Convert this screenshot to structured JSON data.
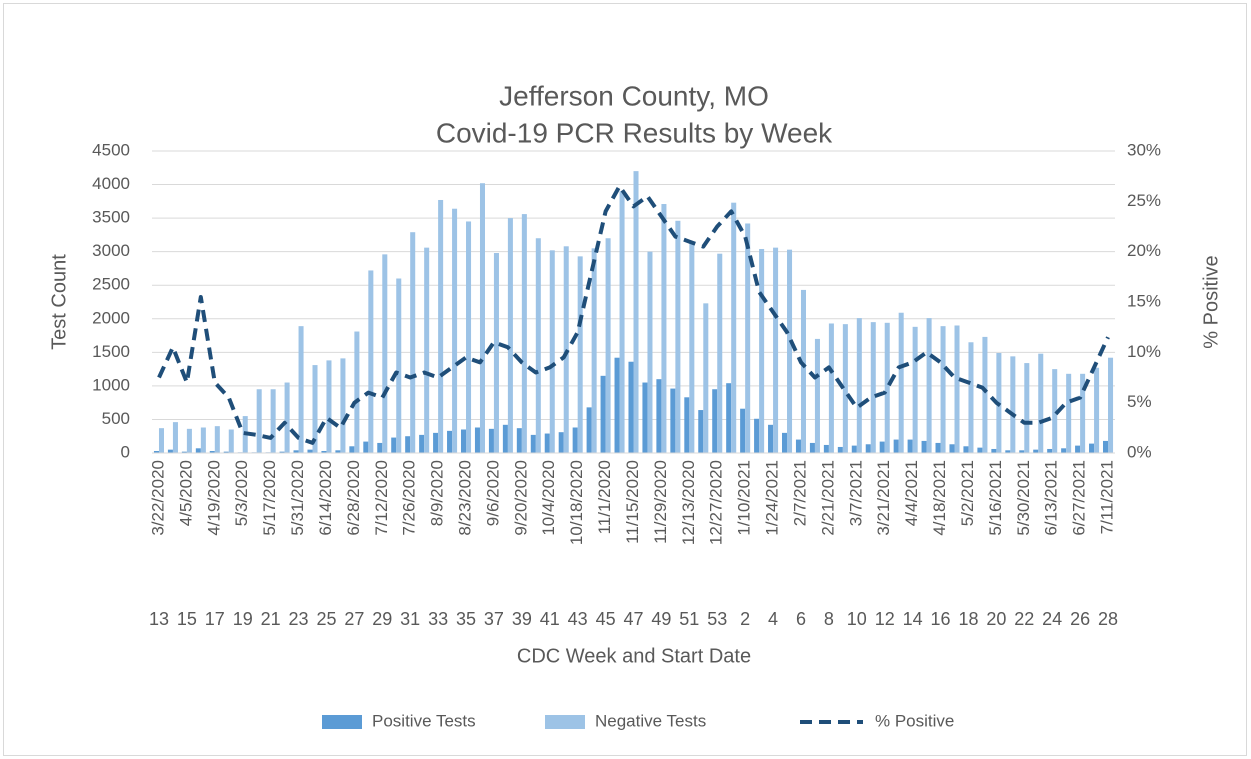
{
  "chart_data": {
    "type": "bar_line",
    "title": "Jefferson County, MO",
    "subtitle": "Covid-19 PCR Results by Week",
    "x_label": "CDC Week and Start Date",
    "y_label": "Test Count",
    "y2_label": "% Positive",
    "categories": [
      "3/22/2020",
      null,
      "4/5/2020",
      null,
      "4/19/2020",
      null,
      "5/3/2020",
      null,
      "5/17/2020",
      null,
      "5/31/2020",
      null,
      "6/14/2020",
      null,
      "6/28/2020",
      null,
      "7/12/2020",
      null,
      "7/26/2020",
      null,
      "8/9/2020",
      null,
      "8/23/2020",
      null,
      "9/6/2020",
      null,
      "9/20/2020",
      null,
      "10/4/2020",
      null,
      "10/18/2020",
      null,
      "11/1/2020",
      null,
      "11/15/2020",
      null,
      "11/29/2020",
      null,
      "12/13/2020",
      null,
      "12/27/2020",
      null,
      "1/10/2021",
      null,
      "1/24/2021",
      null,
      "2/7/2021",
      null,
      "2/21/2021",
      null,
      "3/7/2021",
      null,
      "3/21/2021",
      null,
      "4/4/2021",
      null,
      "4/18/2021",
      null,
      "5/2/2021",
      null,
      "5/16/2021",
      null,
      "5/30/2021",
      null,
      "6/13/2021",
      null,
      "6/27/2021",
      null,
      "7/11/2021"
    ],
    "weeks": [
      13,
      null,
      15,
      null,
      17,
      null,
      19,
      null,
      21,
      null,
      23,
      null,
      25,
      null,
      27,
      null,
      29,
      null,
      31,
      null,
      33,
      null,
      35,
      null,
      37,
      null,
      39,
      null,
      41,
      null,
      43,
      null,
      45,
      null,
      47,
      null,
      49,
      null,
      51,
      null,
      53,
      null,
      2,
      null,
      4,
      null,
      6,
      null,
      8,
      null,
      10,
      null,
      12,
      null,
      14,
      null,
      16,
      null,
      18,
      null,
      20,
      null,
      22,
      null,
      24,
      null,
      26,
      null,
      28
    ],
    "series": [
      {
        "name": "Positive Tests",
        "color": "#5b9bd5",
        "values": [
          30,
          50,
          20,
          70,
          30,
          20,
          10,
          10,
          10,
          20,
          40,
          50,
          30,
          40,
          100,
          170,
          150,
          230,
          250,
          270,
          300,
          330,
          350,
          380,
          360,
          420,
          370,
          270,
          290,
          310,
          380,
          680,
          1150,
          1420,
          1360,
          1050,
          1100,
          960,
          830,
          640,
          950,
          1040,
          660,
          510,
          420,
          300,
          200,
          150,
          120,
          90,
          110,
          130,
          170,
          200,
          200,
          180,
          150,
          130,
          100,
          80,
          60,
          40,
          40,
          50,
          60,
          70,
          110,
          140,
          180
        ]
      },
      {
        "name": "Negative Tests",
        "color": "#9dc3e6",
        "values": [
          370,
          460,
          360,
          380,
          400,
          350,
          550,
          950,
          950,
          1050,
          1890,
          1310,
          1380,
          1410,
          1810,
          2720,
          2960,
          2600,
          3290,
          3060,
          3770,
          3640,
          3450,
          4020,
          2980,
          3500,
          3560,
          3200,
          3020,
          3080,
          2930,
          3050,
          3200,
          3900,
          4200,
          3000,
          3710,
          3460,
          3150,
          2230,
          2970,
          3730,
          3420,
          3040,
          3060,
          3030,
          2430,
          1700,
          1930,
          1920,
          2010,
          1950,
          1940,
          2090,
          1880,
          2010,
          1890,
          1900,
          1650,
          1730,
          1490,
          1440,
          1340,
          1480,
          1250,
          1180,
          1180,
          1270,
          1420
        ]
      },
      {
        "name": "% Positive",
        "color": "#1f4e79",
        "axis": "y2",
        "dashed": true,
        "values": [
          7.5,
          10.5,
          7,
          15.5,
          7,
          5.5,
          2,
          1.8,
          1.5,
          3,
          1.5,
          1,
          3.5,
          2.5,
          5,
          6,
          5.5,
          8,
          7.5,
          8,
          7.5,
          8.5,
          9.5,
          9,
          11,
          10.5,
          9,
          8,
          8.5,
          9.5,
          12,
          18,
          24,
          26.5,
          24.5,
          25.5,
          23.5,
          21.5,
          21,
          20.5,
          22.5,
          24,
          21.5,
          16,
          14,
          12,
          9,
          7.5,
          8.5,
          6.5,
          4.5,
          5.5,
          6,
          8.5,
          9,
          10,
          9,
          7.5,
          7,
          6.5,
          5,
          4,
          3,
          3,
          3.5,
          5,
          5.5,
          8.5,
          11.5
        ]
      }
    ],
    "ylim": [
      0,
      4500
    ],
    "yticks": [
      0,
      500,
      1000,
      1500,
      2000,
      2500,
      3000,
      3500,
      4000,
      4500
    ],
    "y2lim": [
      0,
      30
    ],
    "y2ticks": [
      {
        "value": 0,
        "label": "0%"
      },
      {
        "value": 5,
        "label": "5%"
      },
      {
        "value": 10,
        "label": "10%"
      },
      {
        "value": 15,
        "label": "15%"
      },
      {
        "value": 20,
        "label": "20%"
      },
      {
        "value": 25,
        "label": "25%"
      },
      {
        "value": 30,
        "label": "30%"
      }
    ],
    "grid": true,
    "legend": "bottom"
  }
}
